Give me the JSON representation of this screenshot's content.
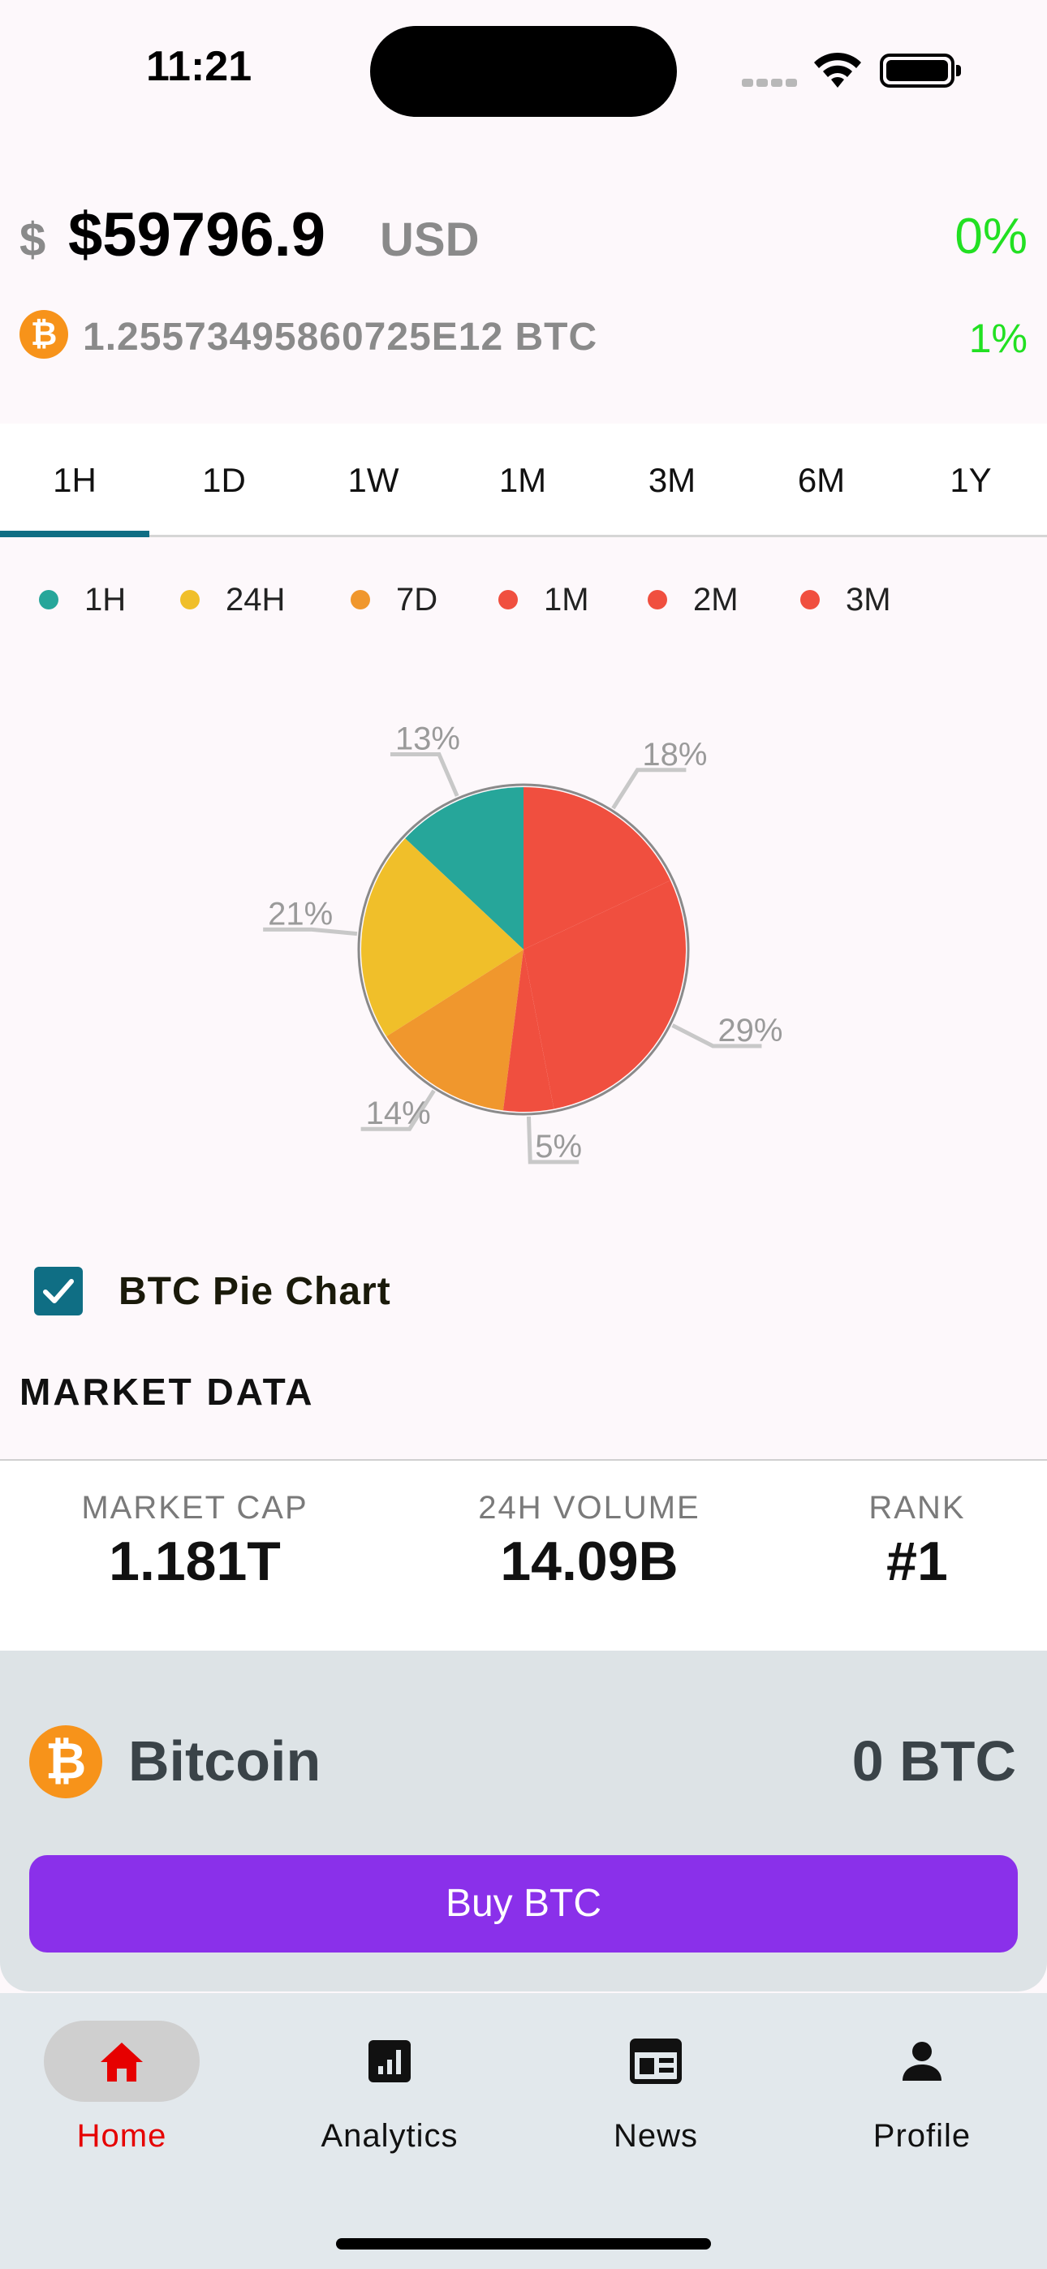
{
  "status_bar": {
    "time": "11:21"
  },
  "header": {
    "dollar_sign": "$",
    "price": "$59796.9",
    "currency": "USD",
    "price_change": "0%",
    "btc_symbol": "₿",
    "btc_amount": "1.25573495860725E12 BTC",
    "btc_change": "1%"
  },
  "tabs": [
    {
      "label": "1H",
      "active": true
    },
    {
      "label": "1D"
    },
    {
      "label": "1W"
    },
    {
      "label": "1M"
    },
    {
      "label": "3M"
    },
    {
      "label": "6M"
    },
    {
      "label": "1Y"
    }
  ],
  "chart_data": {
    "type": "pie",
    "legend": [
      {
        "label": "1H",
        "color": "#26a69a"
      },
      {
        "label": "24H",
        "color": "#f0bf2a"
      },
      {
        "label": "7D",
        "color": "#f0972d"
      },
      {
        "label": "1M",
        "color": "#f04f3f"
      },
      {
        "label": "2M",
        "color": "#f04f3f"
      },
      {
        "label": "3M",
        "color": "#f04f3f"
      }
    ],
    "slices": [
      {
        "value": 13,
        "label": "13%",
        "color": "#26a69a"
      },
      {
        "value": 21,
        "label": "21%",
        "color": "#f0bf2a"
      },
      {
        "value": 14,
        "label": "14%",
        "color": "#f0972d"
      },
      {
        "value": 5,
        "label": "5%",
        "color": "#f04f3f"
      },
      {
        "value": 29,
        "label": "29%",
        "color": "#f04f3f"
      },
      {
        "value": 18,
        "label": "18%",
        "color": "#f04f3f"
      }
    ],
    "remainder_color": "#ffffff"
  },
  "pie_toggle": {
    "label": "BTC Pie Chart",
    "checked": true
  },
  "market": {
    "title": "MARKET DATA",
    "stats": [
      {
        "label": "MARKET CAP",
        "value": "1.181T"
      },
      {
        "label": "24H VOLUME",
        "value": "14.09B"
      },
      {
        "label": "RANK",
        "value": "#1"
      }
    ]
  },
  "coin_card": {
    "symbol": "₿",
    "name": "Bitcoin",
    "holding": "0 BTC",
    "buy_label": "Buy BTC"
  },
  "bottom_nav": [
    {
      "label": "Home",
      "icon": "home-icon",
      "active": true
    },
    {
      "label": "Analytics",
      "icon": "analytics-icon"
    },
    {
      "label": "News",
      "icon": "news-icon"
    },
    {
      "label": "Profile",
      "icon": "profile-icon"
    }
  ]
}
